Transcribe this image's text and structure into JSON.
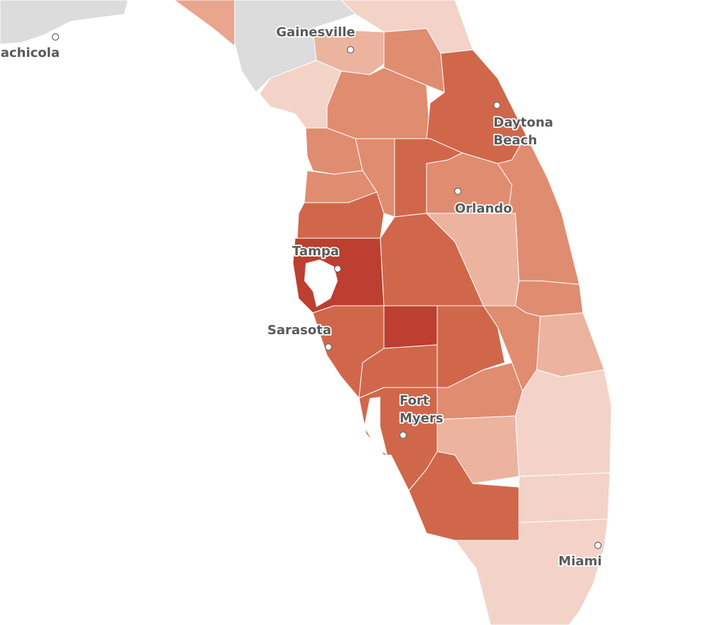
{
  "cities": [
    {
      "label": "Apalachicola"
    },
    {
      "label": "Gainesville"
    },
    {
      "lines": [
        "Daytona",
        "Beach"
      ]
    },
    {
      "label": "Orlando"
    },
    {
      "label": "Tampa"
    },
    {
      "label": "Sarasota"
    },
    {
      "lines": [
        "Fort",
        "Myers"
      ]
    },
    {
      "label": "Miami"
    }
  ]
}
